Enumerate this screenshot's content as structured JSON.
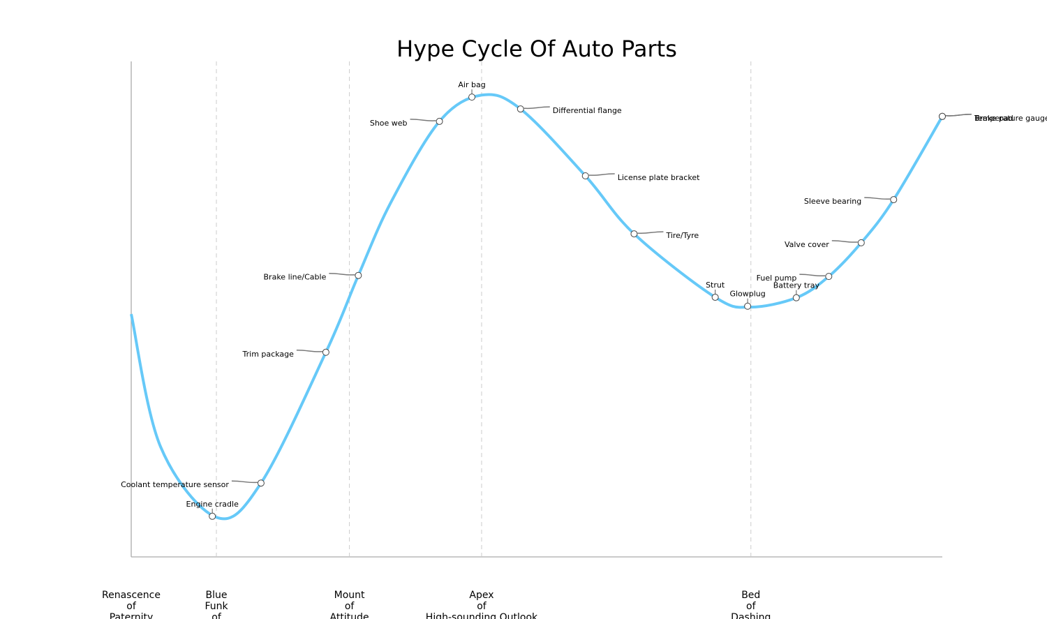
{
  "chart_data": {
    "type": "hype-cycle",
    "title": "Hype Cycle Of Auto Parts",
    "xlim": [
      0,
      100
    ],
    "ylim": [
      0,
      100
    ],
    "curve": {
      "color": "#66c9f8",
      "x": [
        0,
        3.6,
        10.5,
        16.0,
        24.0,
        28.0,
        32.0,
        38.0,
        43.2,
        48.0,
        56.0,
        62.0,
        72.0,
        76.3,
        82.0,
        86.0,
        90.0,
        94.0,
        100
      ],
      "y": [
        49.0,
        22.3,
        8.0,
        14.9,
        41.3,
        56.8,
        71.5,
        87.9,
        93.2,
        90.4,
        76.9,
        65.2,
        52.4,
        50.4,
        52.3,
        56.6,
        63.4,
        72.1,
        88.9
      ]
    },
    "phases": [
      {
        "x": 0,
        "lines": [
          "Renascence",
          "of",
          "Paternity"
        ]
      },
      {
        "x": 10.5,
        "lines": [
          "Blue",
          "Funk",
          "of"
        ]
      },
      {
        "x": 26.9,
        "lines": [
          "Mount",
          "of",
          "Attitude"
        ]
      },
      {
        "x": 43.2,
        "lines": [
          "Apex",
          "of",
          "High-sounding Outlook"
        ]
      },
      {
        "x": 76.4,
        "lines": [
          "Bed",
          "of",
          "Dashing"
        ]
      }
    ],
    "items": [
      {
        "name": "Engine cradle",
        "x": 10.0,
        "y": 8.2,
        "side": "top"
      },
      {
        "name": "Coolant temperature sensor",
        "x": 16.0,
        "y": 14.9,
        "side": "left"
      },
      {
        "name": "Trim package",
        "x": 24.0,
        "y": 41.3,
        "side": "left"
      },
      {
        "name": "Brake line/Cable",
        "x": 28.0,
        "y": 56.8,
        "side": "left"
      },
      {
        "name": "Shoe web",
        "x": 38.0,
        "y": 87.9,
        "side": "left"
      },
      {
        "name": "Air bag",
        "x": 42.0,
        "y": 92.8,
        "side": "top"
      },
      {
        "name": "Differential flange",
        "x": 48.0,
        "y": 90.4,
        "side": "right"
      },
      {
        "name": "License plate bracket",
        "x": 56.0,
        "y": 76.9,
        "side": "right"
      },
      {
        "name": "Tire/Tyre",
        "x": 62.0,
        "y": 65.2,
        "side": "right"
      },
      {
        "name": "Strut",
        "x": 72.0,
        "y": 52.4,
        "side": "top"
      },
      {
        "name": "Glowplug",
        "x": 76.0,
        "y": 50.6,
        "side": "top"
      },
      {
        "name": "Battery tray",
        "x": 82.0,
        "y": 52.3,
        "side": "top"
      },
      {
        "name": "Fuel pump",
        "x": 86.0,
        "y": 56.6,
        "side": "left"
      },
      {
        "name": "Valve cover",
        "x": 90.0,
        "y": 63.4,
        "side": "left"
      },
      {
        "name": "Sleeve bearing",
        "x": 94.0,
        "y": 72.1,
        "side": "left"
      },
      {
        "name": "Temperature gauge",
        "x": 100,
        "y": 88.9,
        "side": "right"
      },
      {
        "name": "Brake pad",
        "x": 100,
        "y": 88.9,
        "side": "right"
      }
    ]
  }
}
